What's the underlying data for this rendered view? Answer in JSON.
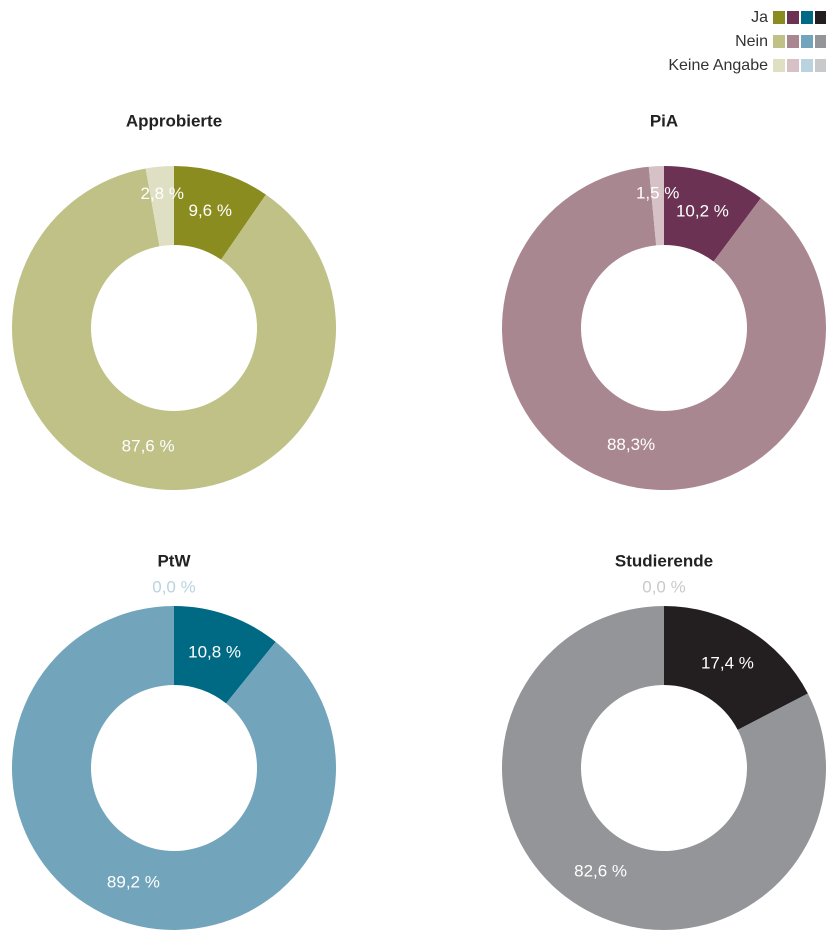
{
  "legend": {
    "labels": [
      "Ja",
      "Nein",
      "Keine Angabe"
    ]
  },
  "chart_data": [
    {
      "type": "pie",
      "title": "Approbierte",
      "values": [
        9.6,
        87.6,
        2.8
      ],
      "value_labels": [
        "9,6 %",
        "87,6 %",
        "2,8 %"
      ],
      "colors": [
        "#8a8c1f",
        "#bfc187",
        "#dfe0c3"
      ]
    },
    {
      "type": "pie",
      "title": "PiA",
      "values": [
        10.2,
        88.3,
        1.5
      ],
      "value_labels": [
        "10,2 %",
        "88,3%",
        "1,5 %"
      ],
      "colors": [
        "#6b3254",
        "#a98790",
        "#d5c1c6"
      ]
    },
    {
      "type": "pie",
      "title": "PtW",
      "values": [
        10.8,
        89.2,
        0.0
      ],
      "value_labels": [
        "10,8 %",
        "89,2 %",
        "0,0 %"
      ],
      "colors": [
        "#006a85",
        "#72a5bb",
        "#b9d3df"
      ]
    },
    {
      "type": "pie",
      "title": "Studierende",
      "values": [
        17.4,
        82.6,
        0.0
      ],
      "value_labels": [
        "17,4 %",
        "82,6 %",
        "0,0 %"
      ],
      "colors": [
        "#231f20",
        "#939598",
        "#c8c9cb"
      ]
    }
  ]
}
